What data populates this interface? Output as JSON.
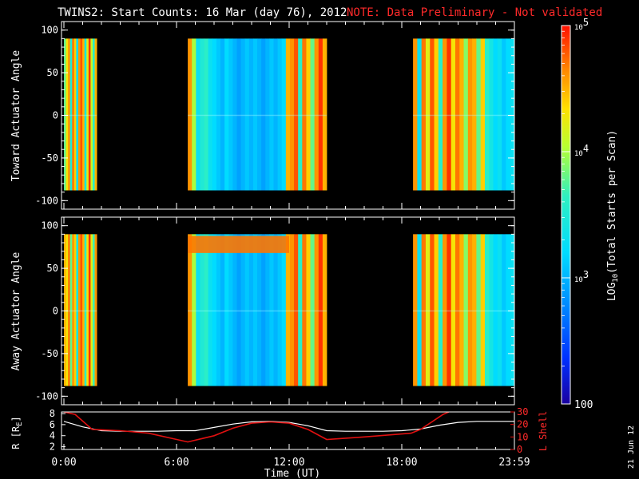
{
  "header": {
    "title": "TWINS2: Start Counts: 16 Mar (day  76), 2012",
    "note": "NOTE: Data Preliminary - Not validated"
  },
  "side_date": "21 Jun 12",
  "colors": {
    "background": "#000000",
    "axes": "#ffffff",
    "note": "#ff2a2a",
    "r_line": "#ffffff",
    "l_line": "#e01010"
  },
  "chart_data": [
    {
      "type": "heatmap",
      "id": "toward",
      "ylabel": "Toward Actuator Angle",
      "ylim": [
        -110,
        110
      ],
      "yticks": [
        -100,
        -50,
        0,
        50,
        100
      ],
      "ytick_labels": [
        "-100",
        "-50",
        "0",
        "50",
        "100"
      ],
      "y_range_data": [
        -88,
        90
      ],
      "x_unit": "hours UT",
      "xlim": [
        0,
        24
      ],
      "data_segments": [
        {
          "x": [
            0.0,
            1.75
          ],
          "log_counts": [
            3.8,
            4.3,
            4.6,
            3.5,
            4.7,
            4.4,
            3.2,
            4.6,
            4.8,
            4.5,
            3.4,
            4.2,
            4.9,
            4.1,
            3.6,
            4.5
          ]
        },
        {
          "x": [
            6.6,
            14.0
          ],
          "log_counts": [
            4.6,
            4.0,
            3.3,
            3.5,
            3.6,
            3.3,
            3.2,
            3.1,
            3.0,
            3.2,
            3.1,
            3.0,
            2.9,
            3.0,
            3.1,
            3.0,
            3.1,
            3.0,
            2.9,
            3.0,
            3.1,
            3.0,
            3.1,
            3.2,
            4.5,
            4.6,
            4.8,
            3.6,
            4.7,
            4.4,
            3.8,
            4.6,
            4.9,
            4.5
          ]
        },
        {
          "x": [
            18.6,
            24.0
          ],
          "log_counts": [
            4.6,
            3.3,
            4.7,
            4.2,
            4.8,
            4.4,
            3.6,
            4.6,
            4.9,
            4.3,
            4.7,
            4.5,
            3.9,
            4.6,
            4.5,
            3.8,
            4.4,
            3.6,
            3.4,
            3.2,
            3.3,
            3.1,
            3.2,
            3.3
          ]
        }
      ]
    },
    {
      "type": "heatmap",
      "id": "away",
      "ylabel": "Away Actuator Angle",
      "ylim": [
        -110,
        110
      ],
      "yticks": [
        -100,
        -50,
        0,
        50,
        100
      ],
      "ytick_labels": [
        "-100",
        "-50",
        "0",
        "50",
        "100"
      ],
      "y_range_data": [
        -88,
        90
      ],
      "x_unit": "hours UT",
      "xlim": [
        0,
        24
      ],
      "data_segments": [
        {
          "x": [
            0.0,
            1.75
          ],
          "log_counts": [
            4.5,
            4.3,
            4.7,
            3.8,
            4.6,
            4.4,
            3.4,
            4.6,
            4.8,
            4.5,
            3.6,
            4.3,
            4.9,
            4.2,
            3.7,
            4.6
          ]
        },
        {
          "x": [
            6.6,
            14.0
          ],
          "log_counts": [
            4.6,
            4.0,
            3.3,
            3.5,
            3.6,
            3.3,
            3.2,
            3.1,
            3.0,
            3.2,
            3.1,
            3.0,
            2.9,
            3.0,
            3.1,
            3.0,
            3.1,
            3.0,
            2.9,
            3.0,
            3.1,
            3.0,
            3.1,
            3.2,
            4.5,
            4.6,
            4.8,
            3.6,
            4.7,
            4.4,
            3.8,
            4.6,
            4.9,
            4.5
          ]
        },
        {
          "x": [
            18.6,
            24.0
          ],
          "log_counts": [
            4.6,
            3.3,
            4.7,
            4.2,
            4.8,
            4.4,
            3.6,
            4.6,
            4.9,
            4.3,
            4.7,
            4.5,
            3.9,
            4.6,
            4.5,
            3.8,
            4.4,
            3.6,
            3.4,
            3.2,
            3.3,
            3.1,
            3.2,
            3.3
          ]
        }
      ],
      "high_band": {
        "y": [
          68,
          88
        ],
        "x": [
          6.6,
          12.0
        ],
        "log_counts": 4.7
      }
    },
    {
      "type": "line",
      "id": "orbit",
      "ylabel": "R [R",
      "ylabel_sub": "E",
      "ylabel_close": "]",
      "ylim": [
        1.5,
        8.3
      ],
      "yticks": [
        2,
        4,
        6,
        8
      ],
      "ytick_labels": [
        "2",
        "4",
        "6",
        "8"
      ],
      "y2label": "L Shell",
      "y2lim": [
        0,
        30
      ],
      "y2ticks": [
        0,
        10,
        20,
        30
      ],
      "y2tick_labels": [
        "0",
        "10",
        "20",
        "30"
      ],
      "xlim": [
        0,
        24
      ],
      "xticks": [
        0,
        6,
        12,
        18,
        24
      ],
      "xtick_labels": [
        "0:00",
        "6:00",
        "12:00",
        "18:00",
        "23:59"
      ],
      "xlabel": "Time (UT)",
      "series": [
        {
          "axis": "left",
          "x": [
            0,
            1,
            2,
            3,
            4,
            5,
            6,
            7,
            8,
            9,
            10,
            11,
            12,
            13,
            14,
            15,
            16,
            17,
            18,
            19,
            20,
            21,
            22,
            23,
            24
          ],
          "values": [
            6.6,
            5.6,
            4.9,
            4.8,
            4.8,
            4.8,
            4.9,
            4.9,
            5.5,
            6.1,
            6.5,
            6.6,
            6.4,
            5.8,
            4.9,
            4.8,
            4.8,
            4.8,
            4.9,
            5.2,
            5.9,
            6.4,
            6.6,
            6.6,
            6.6
          ]
        },
        {
          "axis": "right",
          "x": [
            0,
            0.6,
            1.5,
            3,
            4.5,
            6.6,
            8,
            9,
            10,
            11,
            12,
            13,
            14,
            16,
            18.5,
            19,
            20.2,
            20.5
          ],
          "values": [
            30,
            28,
            16,
            15,
            13,
            6,
            11,
            17,
            21,
            22,
            21,
            16,
            8,
            10,
            13,
            16,
            28,
            30
          ]
        }
      ]
    }
  ],
  "colorbar": {
    "label_main": "LOG",
    "label_sub": "10",
    "label_rest": "(Total Starts per Scan)",
    "range_log": [
      2,
      5
    ],
    "ticks": [
      {
        "value": 5,
        "base": "10",
        "exp": "5"
      },
      {
        "value": 4,
        "base": "10",
        "exp": "4"
      },
      {
        "value": 3,
        "base": "10",
        "exp": "3"
      },
      {
        "value": 2,
        "base": "100",
        "exp": ""
      }
    ]
  }
}
